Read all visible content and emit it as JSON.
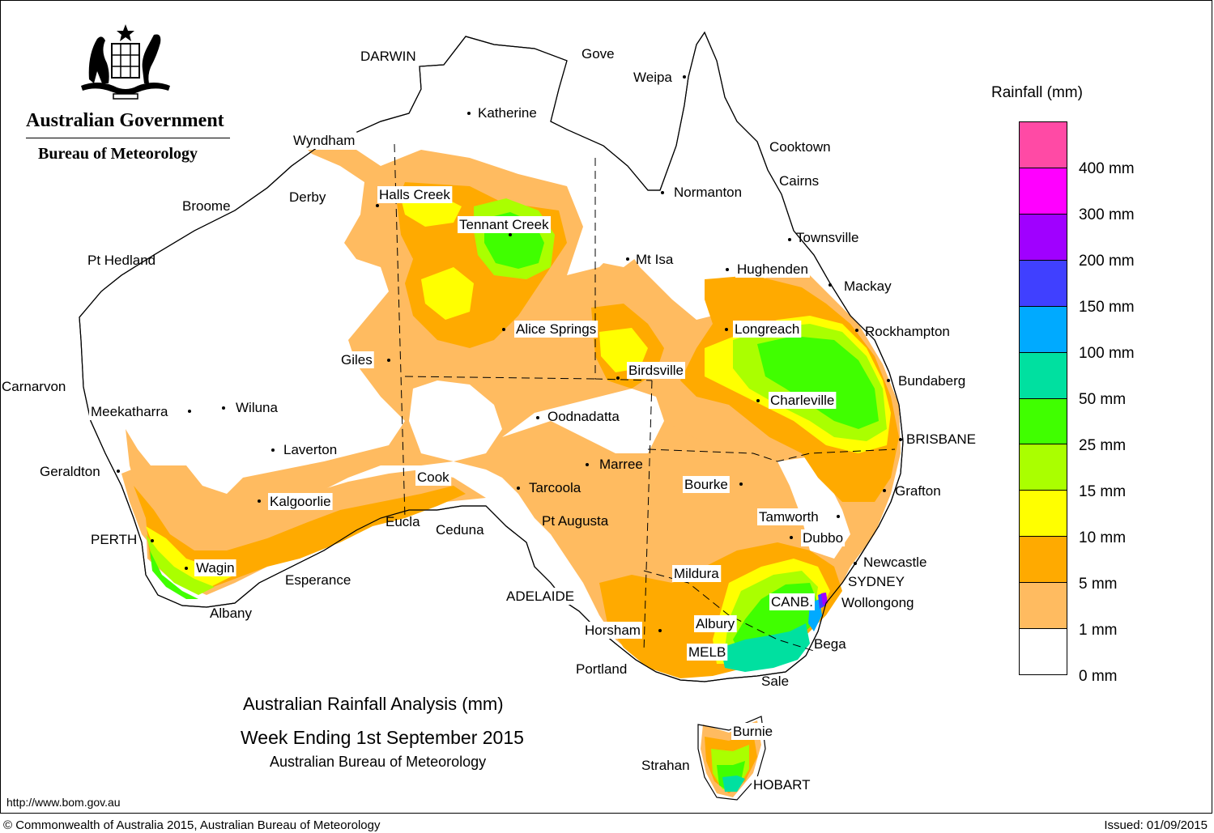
{
  "header": {
    "government": "Australian Government",
    "bureau": "Bureau of Meteorology"
  },
  "legend": {
    "title": "Rainfall (mm)",
    "bands": [
      {
        "color": "#ff4aa5"
      },
      {
        "color": "#ff00ff"
      },
      {
        "color": "#a000ff"
      },
      {
        "color": "#4040ff"
      },
      {
        "color": "#00aaff"
      },
      {
        "color": "#00e0a0"
      },
      {
        "color": "#40ff00"
      },
      {
        "color": "#aaff00"
      },
      {
        "color": "#ffff00"
      },
      {
        "color": "#ffaa00"
      },
      {
        "color": "#ffbb60"
      },
      {
        "color": "#ffffff"
      }
    ],
    "labels": [
      "400 mm",
      "300 mm",
      "200 mm",
      "150 mm",
      "100 mm",
      "50 mm",
      "25 mm",
      "15 mm",
      "10 mm",
      "5 mm",
      "1 mm",
      "0 mm"
    ]
  },
  "colors": {
    "r0": "#ffffff",
    "r1": "#ffbb60",
    "r5": "#ffaa00",
    "r10": "#ffff00",
    "r15": "#aaff00",
    "r25": "#40ff00",
    "r50": "#00e0a0",
    "r100": "#00aaff",
    "r150": "#4040ff",
    "r200": "#a000ff"
  },
  "places": [
    {
      "name": "DARWIN",
      "bg": false
    },
    {
      "name": "Gove",
      "bg": false
    },
    {
      "name": "Weipa",
      "bg": false
    },
    {
      "name": "Katherine",
      "bg": false
    },
    {
      "name": "Wyndham",
      "bg": true
    },
    {
      "name": "Cooktown",
      "bg": false
    },
    {
      "name": "Cairns",
      "bg": false
    },
    {
      "name": "Normanton",
      "bg": false
    },
    {
      "name": "Derby",
      "bg": false
    },
    {
      "name": "Halls Creek",
      "bg": true
    },
    {
      "name": "Broome",
      "bg": false
    },
    {
      "name": "Tennant Creek",
      "bg": true
    },
    {
      "name": "Townsville",
      "bg": false
    },
    {
      "name": "Pt Hedland",
      "bg": false
    },
    {
      "name": "Mt Isa",
      "bg": false
    },
    {
      "name": "Hughenden",
      "bg": true
    },
    {
      "name": "Mackay",
      "bg": false
    },
    {
      "name": "Alice Springs",
      "bg": true
    },
    {
      "name": "Longreach",
      "bg": true
    },
    {
      "name": "Rockhampton",
      "bg": false
    },
    {
      "name": "Giles",
      "bg": true
    },
    {
      "name": "Birdsville",
      "bg": true
    },
    {
      "name": "Bundaberg",
      "bg": false
    },
    {
      "name": "Carnarvon",
      "bg": false
    },
    {
      "name": "Charleville",
      "bg": true
    },
    {
      "name": "Meekatharra",
      "bg": true
    },
    {
      "name": "Wiluna",
      "bg": false
    },
    {
      "name": "Oodnadatta",
      "bg": false
    },
    {
      "name": "BRISBANE",
      "bg": false
    },
    {
      "name": "Laverton",
      "bg": false
    },
    {
      "name": "Marree",
      "bg": false
    },
    {
      "name": "Geraldton",
      "bg": false
    },
    {
      "name": "Cook",
      "bg": true
    },
    {
      "name": "Bourke",
      "bg": true
    },
    {
      "name": "Tarcoola",
      "bg": false
    },
    {
      "name": "Grafton",
      "bg": false
    },
    {
      "name": "Kalgoorlie",
      "bg": true
    },
    {
      "name": "Tamworth",
      "bg": true
    },
    {
      "name": "Eucla",
      "bg": false
    },
    {
      "name": "Pt Augusta",
      "bg": false
    },
    {
      "name": "Ceduna",
      "bg": false
    },
    {
      "name": "Dubbo",
      "bg": true
    },
    {
      "name": "PERTH",
      "bg": false
    },
    {
      "name": "Newcastle",
      "bg": false
    },
    {
      "name": "Wagin",
      "bg": true
    },
    {
      "name": "Mildura",
      "bg": true
    },
    {
      "name": "Esperance",
      "bg": false
    },
    {
      "name": "SYDNEY",
      "bg": false
    },
    {
      "name": "ADELAIDE",
      "bg": true
    },
    {
      "name": "CANB.",
      "bg": true
    },
    {
      "name": "Wollongong",
      "bg": false
    },
    {
      "name": "Albany",
      "bg": false
    },
    {
      "name": "Albury",
      "bg": true
    },
    {
      "name": "Horsham",
      "bg": true
    },
    {
      "name": "Bega",
      "bg": false
    },
    {
      "name": "MELB",
      "bg": true
    },
    {
      "name": "Portland",
      "bg": false
    },
    {
      "name": "Sale",
      "bg": false
    },
    {
      "name": "Burnie",
      "bg": true
    },
    {
      "name": "Strahan",
      "bg": false
    },
    {
      "name": "HOBART",
      "bg": true
    }
  ],
  "title": {
    "line1": "Australian Rainfall Analysis (mm)",
    "line2": "Week Ending 1st September 2015",
    "line3": "Australian Bureau of Meteorology"
  },
  "footer": {
    "url": "http://www.bom.gov.au",
    "copyright": "© Commonwealth of Australia 2015, Australian Bureau of Meteorology",
    "issued": "Issued: 01/09/2015"
  }
}
